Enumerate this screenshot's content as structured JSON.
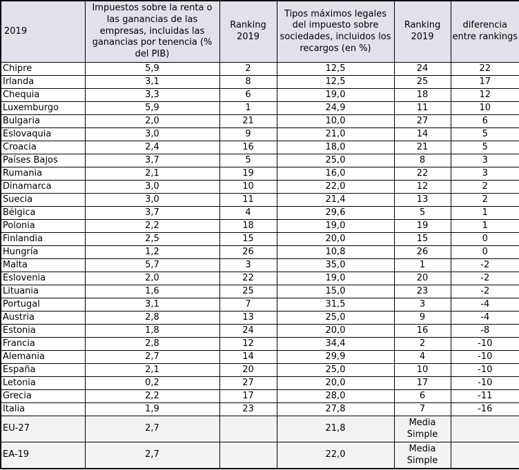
{
  "table": {
    "title_cell": "2019",
    "headers": [
      "2019",
      "Impuestos sobre la renta o las ganancias de las empresas, incluidas las ganancias por tenencia (% del PIB)",
      "Ranking 2019",
      "Tipos máximos legales del impuesto sobre sociedades, incluidos los recargos (en %)",
      "Ranking 2019",
      "diferencia entre rankings"
    ],
    "rows": [
      [
        "Chipre",
        "5,9",
        "2",
        "12,5",
        "24",
        "22"
      ],
      [
        "Irlanda",
        "3,1",
        "8",
        "12,5",
        "25",
        "17"
      ],
      [
        "Chequia",
        "3,3",
        "6",
        "19,0",
        "18",
        "12"
      ],
      [
        "Luxemburgo",
        "5,9",
        "1",
        "24,9",
        "11",
        "10"
      ],
      [
        "Bulgaria",
        "2,0",
        "21",
        "10,0",
        "27",
        "6"
      ],
      [
        "Eslovaquia",
        "3,0",
        "9",
        "21,0",
        "14",
        "5"
      ],
      [
        "Croacia",
        "2,4",
        "16",
        "18,0",
        "21",
        "5"
      ],
      [
        "Países Bajos",
        "3,7",
        "5",
        "25,0",
        "8",
        "3"
      ],
      [
        "Rumania",
        "2,1",
        "19",
        "16,0",
        "22",
        "3"
      ],
      [
        "Dinamarca",
        "3,0",
        "10",
        "22,0",
        "12",
        "2"
      ],
      [
        "Suecia",
        "3,0",
        "11",
        "21,4",
        "13",
        "2"
      ],
      [
        "Bélgica",
        "3,7",
        "4",
        "29,6",
        "5",
        "1"
      ],
      [
        "Polonia",
        "2,2",
        "18",
        "19,0",
        "19",
        "1"
      ],
      [
        "Finlandia",
        "2,5",
        "15",
        "20,0",
        "15",
        "0"
      ],
      [
        "Hungría",
        "1,2",
        "26",
        "10,8",
        "26",
        "0"
      ],
      [
        "Malta",
        "5,7",
        "3",
        "35,0",
        "1",
        "-2"
      ],
      [
        "Eslovenia",
        "2,0",
        "22",
        "19,0",
        "20",
        "-2"
      ],
      [
        "Lituania",
        "1,6",
        "25",
        "15,0",
        "23",
        "-2"
      ],
      [
        "Portugal",
        "3,1",
        "7",
        "31,5",
        "3",
        "-4"
      ],
      [
        "Austria",
        "2,8",
        "13",
        "25,0",
        "9",
        "-4"
      ],
      [
        "Estonia",
        "1,8",
        "24",
        "20,0",
        "16",
        "-8"
      ],
      [
        "Francia",
        "2,8",
        "12",
        "34,4",
        "2",
        "-10"
      ],
      [
        "Alemania",
        "2,7",
        "14",
        "29,9",
        "4",
        "-10"
      ],
      [
        "España",
        "2,1",
        "20",
        "25,0",
        "10",
        "-10"
      ],
      [
        "Letonia",
        "0,2",
        "27",
        "20,0",
        "17",
        "-10"
      ],
      [
        "Grecia",
        "2,2",
        "17",
        "28,0",
        "6",
        "-11"
      ],
      [
        "Italia",
        "1,9",
        "23",
        "27,8",
        "7",
        "-16"
      ]
    ],
    "summary_rows": [
      [
        "EU-27",
        "2,7",
        "",
        "21,8",
        "Media Simple",
        ""
      ],
      [
        "EA-19",
        "2,7",
        "",
        "22,0",
        "Media Simple",
        ""
      ]
    ]
  },
  "colors": {
    "header_bg": "#E3DFEB",
    "summary_bg": "#F2F2F2",
    "border": "#000000",
    "text": "#000000"
  }
}
